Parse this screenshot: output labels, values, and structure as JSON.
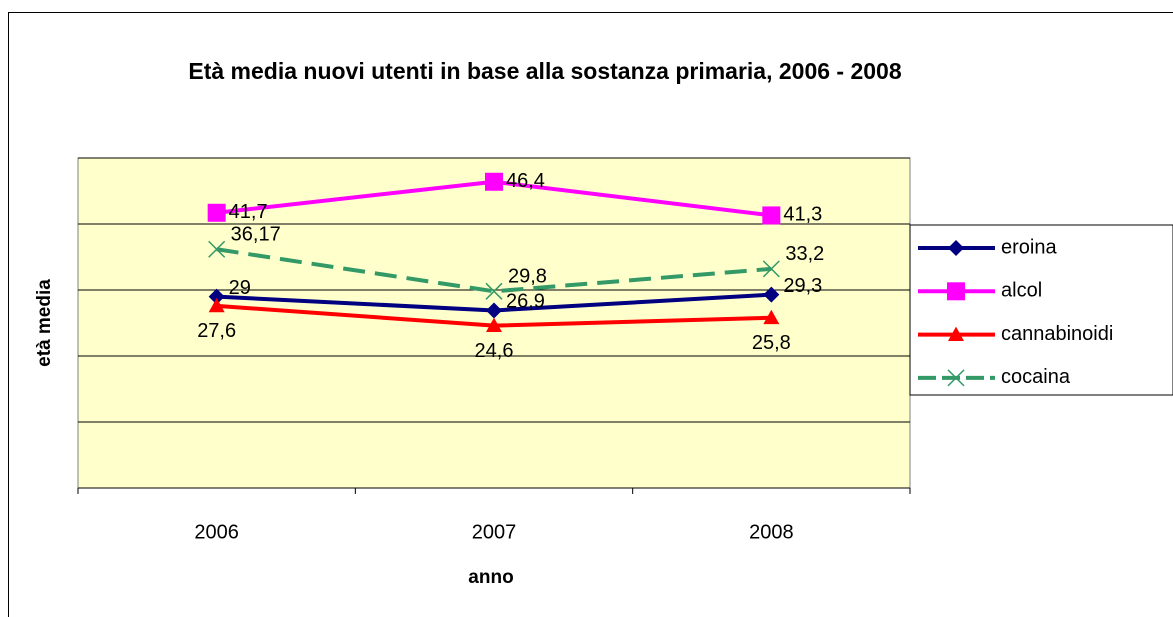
{
  "chart_data": {
    "type": "line",
    "title": "Età media nuovi utenti in base alla sostanza primaria, 2006 - 2008",
    "x_label": "anno",
    "y_label": "età media",
    "categories": [
      "2006",
      "2007",
      "2008"
    ],
    "ylim": [
      0,
      50
    ],
    "yticks": [
      0,
      10,
      20,
      30,
      40,
      50
    ],
    "grid": true,
    "legend": "right",
    "series": [
      {
        "name": "eroina",
        "color": "#000080",
        "marker": "diamond",
        "dash": false,
        "values": [
          29,
          26.9,
          29.3
        ],
        "value_labels": [
          "29",
          "26,9",
          "29,3"
        ]
      },
      {
        "name": "alcol",
        "color": "#ff00ff",
        "marker": "square",
        "dash": false,
        "values": [
          41.7,
          46.4,
          41.3
        ],
        "value_labels": [
          "41,7",
          "46,4",
          "41,3"
        ]
      },
      {
        "name": "cannabinoidi",
        "color": "#ff0000",
        "marker": "triangle",
        "dash": false,
        "values": [
          27.6,
          24.6,
          25.8
        ],
        "value_labels": [
          "27,6",
          "24,6",
          "25,8"
        ]
      },
      {
        "name": "cocaina",
        "color": "#339966",
        "marker": "x",
        "dash": true,
        "values": [
          36.17,
          29.8,
          33.2
        ],
        "value_labels": [
          "36,17",
          "29,8",
          "33,2"
        ]
      }
    ]
  }
}
